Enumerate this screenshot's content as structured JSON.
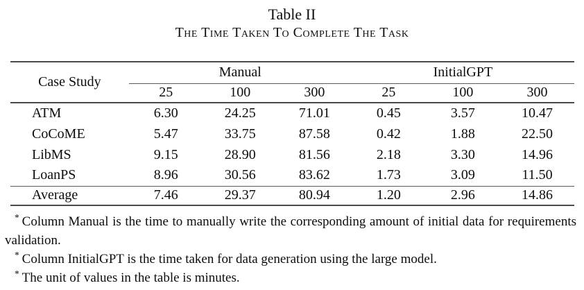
{
  "caption": {
    "number": "Table II",
    "title": "The Time Taken To Complete The Task"
  },
  "table": {
    "corner_header": "Case Study",
    "groups": [
      {
        "label": "Manual"
      },
      {
        "label": "InitialGPT"
      }
    ],
    "subheaders": [
      "25",
      "100",
      "300",
      "25",
      "100",
      "300"
    ],
    "rows": [
      {
        "label": "ATM",
        "values": [
          "6.30",
          "24.25",
          "71.01",
          "0.45",
          "3.57",
          "10.47"
        ]
      },
      {
        "label": "CoCoME",
        "values": [
          "5.47",
          "33.75",
          "87.58",
          "0.42",
          "1.88",
          "22.50"
        ]
      },
      {
        "label": "LibMS",
        "values": [
          "9.15",
          "28.90",
          "81.56",
          "2.18",
          "3.30",
          "14.96"
        ]
      },
      {
        "label": "LoanPS",
        "values": [
          "8.96",
          "30.56",
          "83.62",
          "1.73",
          "3.09",
          "11.50"
        ]
      }
    ],
    "summary_row": {
      "label": "Average",
      "values": [
        "7.46",
        "29.37",
        "80.94",
        "1.20",
        "2.96",
        "14.86"
      ]
    }
  },
  "footnotes": [
    {
      "marker": "*",
      "text": "Column Manual is the time to manually write the corresponding amount of initial data for requirements validation."
    },
    {
      "marker": "*",
      "text": "Column InitialGPT is the time taken for data generation using the large model."
    },
    {
      "marker": "*",
      "text": "The unit of values in the table is minutes."
    }
  ],
  "colors": {
    "background": "#ffffff",
    "text": "#0d0d0d",
    "rule": "#4a4a4a"
  }
}
